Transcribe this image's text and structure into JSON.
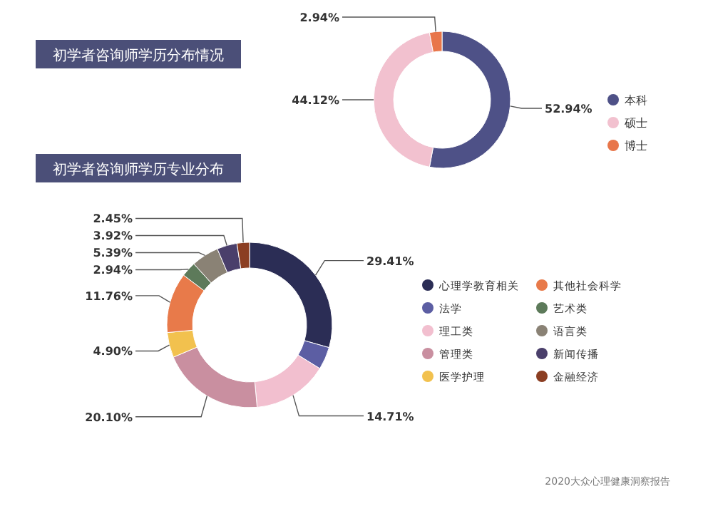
{
  "chart_data": [
    {
      "type": "donut",
      "title": "初学者咨询师学历分布情况",
      "categories": [
        "本科",
        "硕士",
        "博士"
      ],
      "values": [
        52.94,
        44.12,
        2.94
      ],
      "colors": [
        "#4e5187",
        "#f2c1cf",
        "#e8764a"
      ],
      "value_labels": [
        "52.94%",
        "44.12%",
        "2.94%"
      ],
      "legend": "right"
    },
    {
      "type": "donut",
      "title": "初学者咨询师学历专业分布",
      "categories": [
        "心理学教育相关",
        "法学",
        "理工类",
        "管理类",
        "医学护理",
        "其他社会科学",
        "艺术类",
        "语言类",
        "新闻传播",
        "金融经济"
      ],
      "values": [
        29.41,
        4.42,
        14.71,
        20.1,
        4.9,
        11.76,
        2.94,
        5.39,
        3.92,
        2.45
      ],
      "colors": [
        "#2b2d55",
        "#5c5ea3",
        "#f2bfcf",
        "#c98fa0",
        "#f2c14e",
        "#e87a4a",
        "#5d7a5a",
        "#8a8275",
        "#4a3f6b",
        "#8b3e22"
      ],
      "value_labels": [
        "29.41%",
        null,
        "14.71%",
        "20.10%",
        "4.90%",
        "11.76%",
        "2.94%",
        "5.39%",
        "3.92%",
        "2.45%"
      ],
      "legend": "right",
      "annotations": [
        "2020大众心理健康洞察报告"
      ]
    }
  ]
}
